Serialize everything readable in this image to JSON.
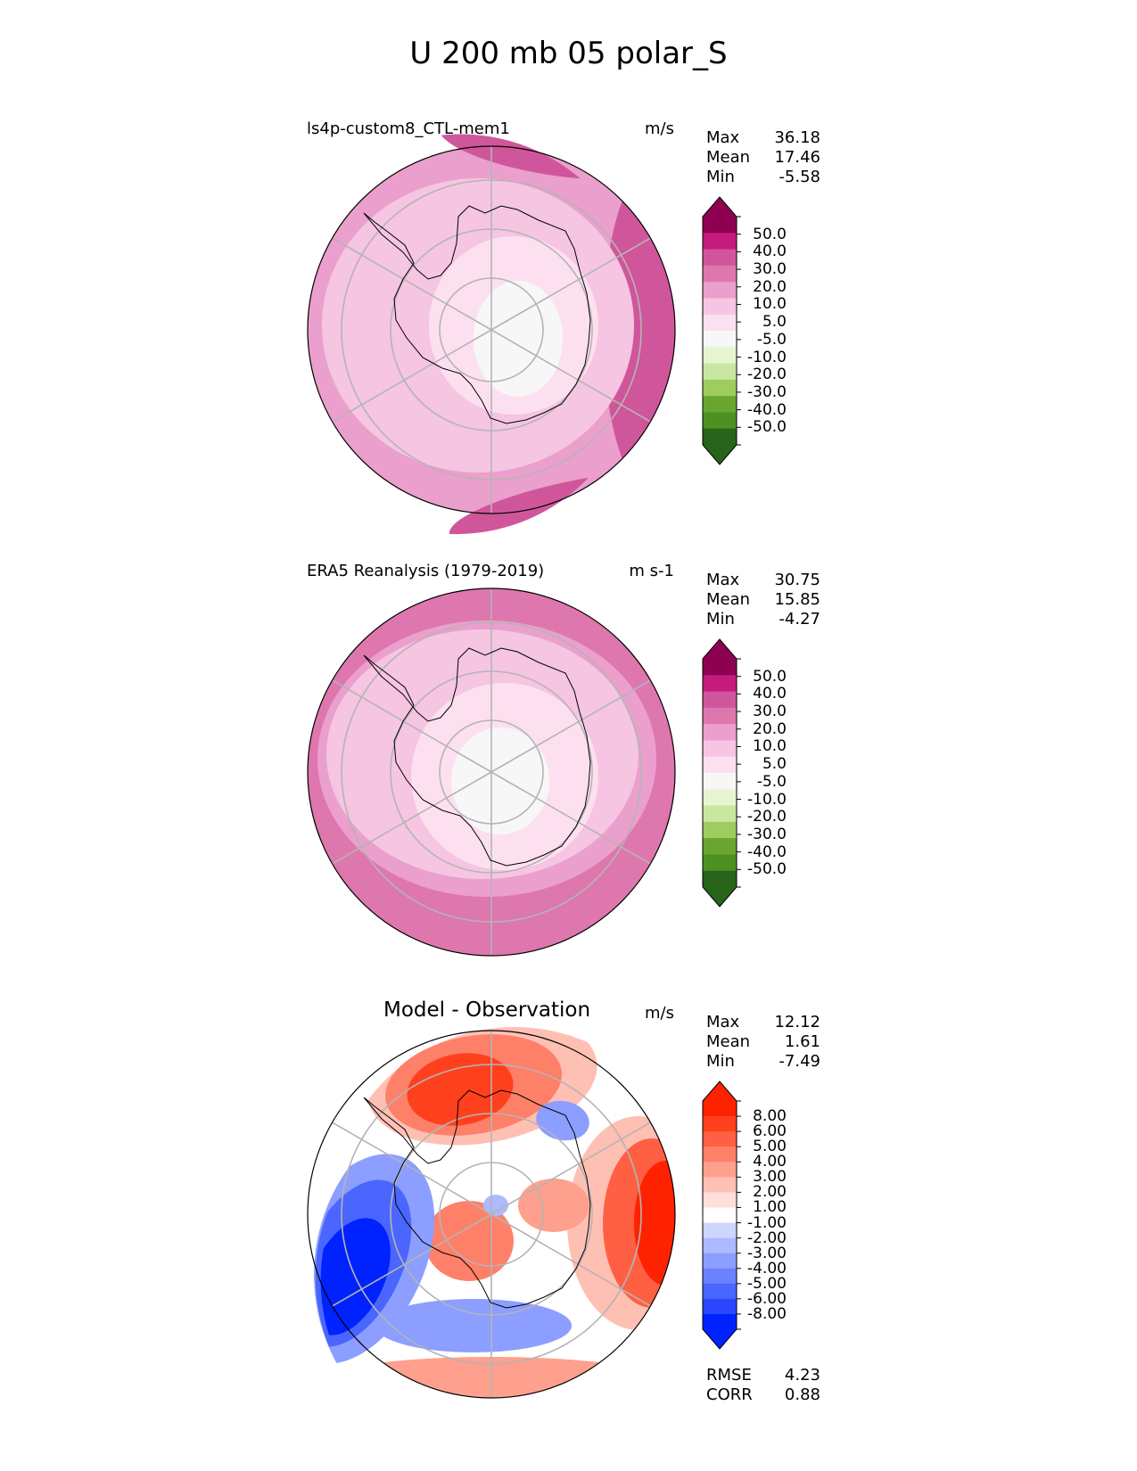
{
  "figure_title": "U 200 mb 05 polar_S",
  "palettes": {
    "pink": {
      "colors": [
        "#276419",
        "#4d9221",
        "#7fbc41",
        "#b8e186",
        "#e6f5d0",
        "#f7f7f7",
        "#fde0ef",
        "#f1b6da",
        "#de77ae",
        "#c51b7d",
        "#8e0152"
      ],
      "ends": [
        "#276419",
        "#8e0152"
      ],
      "segments": [
        "#276419",
        "#4d9221",
        "#6aa52f",
        "#9fcc5f",
        "#c8e7a0",
        "#e6f5d0",
        "#f7f7f7",
        "#fde0ef",
        "#f5c5e2",
        "#eb9fcc",
        "#de77ae",
        "#d0569b",
        "#c51b7d",
        "#8e0152"
      ]
    },
    "diff": {
      "segments": [
        "#0022ff",
        "#2a47ff",
        "#4a66ff",
        "#6b82ff",
        "#8c9eff",
        "#adbaff",
        "#cdd6ff",
        "#ffffff",
        "#ffdfda",
        "#ffc0b4",
        "#ffa08e",
        "#ff8068",
        "#ff6043",
        "#ff401d",
        "#ff2200"
      ],
      "ends": [
        "#0022ff",
        "#ff2200"
      ]
    }
  },
  "chart_data": [
    {
      "type": "heatmap",
      "projection": "south-polar-stereographic",
      "title": "ls4p-custom8_CTL-mem1",
      "units": "m/s",
      "stats": {
        "Max": "36.18",
        "Mean": "17.46",
        "Min": "-5.58"
      },
      "colorbar_ticks": [
        "50.0",
        "40.0",
        "30.0",
        "20.0",
        "10.0",
        "5.0",
        "-5.0",
        "-10.0",
        "-20.0",
        "-30.0",
        "-40.0",
        "-50.0"
      ],
      "field_levels": [
        "20.0",
        "10.0",
        "5.0",
        "10.0",
        "30.0"
      ],
      "palette": "pink"
    },
    {
      "type": "heatmap",
      "projection": "south-polar-stereographic",
      "title": "ERA5 Reanalysis (1979-2019)",
      "units": "m s-1",
      "stats": {
        "Max": "30.75",
        "Mean": "15.85",
        "Min": "-4.27"
      },
      "colorbar_ticks": [
        "50.0",
        "40.0",
        "30.0",
        "20.0",
        "10.0",
        "5.0",
        "-5.0",
        "-10.0",
        "-20.0",
        "-30.0",
        "-40.0",
        "-50.0"
      ],
      "field_levels": [
        "20.0",
        "10.0",
        "5.0",
        "10.0"
      ],
      "palette": "pink"
    },
    {
      "type": "heatmap",
      "projection": "south-polar-stereographic",
      "title": "Model - Observation",
      "units": "m/s",
      "stats": {
        "Max": "12.12",
        "Mean": "1.61",
        "Min": "-7.49"
      },
      "colorbar_ticks": [
        "8.00",
        "6.00",
        "5.00",
        "4.00",
        "3.00",
        "2.00",
        "1.00",
        "-1.00",
        "-2.00",
        "-3.00",
        "-4.00",
        "-5.00",
        "-6.00",
        "-8.00"
      ],
      "extra_stats": {
        "RMSE": "4.23",
        "CORR": "0.88"
      },
      "palette": "diff"
    }
  ]
}
